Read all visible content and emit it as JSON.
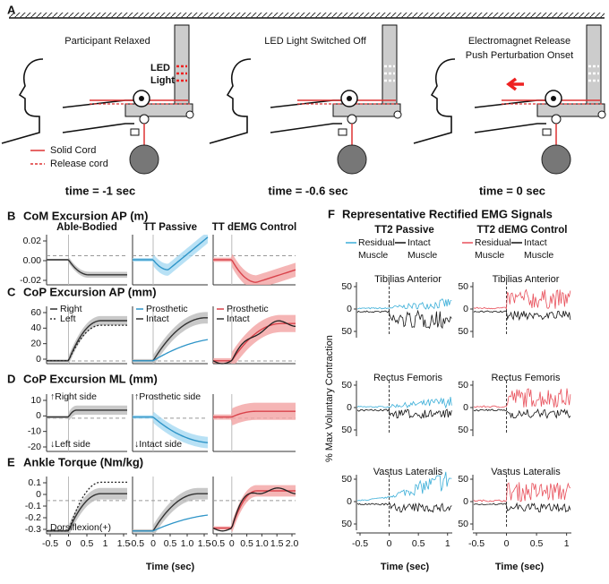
{
  "panel_a": {
    "label": "A",
    "scenes": [
      {
        "caption": [
          "Participant Relaxed"
        ],
        "time": "time = -1 sec"
      },
      {
        "caption": [
          "LED Light Switched Off"
        ],
        "time": "time = -0.6 sec"
      },
      {
        "caption": [
          "Electromagnet Release",
          "Push Perturbation Onset"
        ],
        "time": "time = 0 sec"
      }
    ],
    "led": [
      "LED",
      "Light"
    ],
    "legend": [
      "Solid Cord",
      "Release cord"
    ]
  },
  "panels": [
    {
      "label": "B",
      "title": "CoM Excursion AP (m)",
      "columns": [
        "Able-Bodied",
        "TT Passive",
        "TT dEMG Control"
      ],
      "yticks": [
        "0.02",
        "0.00",
        "-0.02"
      ]
    },
    {
      "label": "C",
      "title": "CoP Excursion AP (mm)",
      "legends": [
        [
          "Right",
          "Left"
        ],
        [
          "Prosthetic",
          "Intact"
        ],
        [
          "Prosthetic",
          "Intact"
        ]
      ],
      "yticks": [
        "60",
        "40",
        "20",
        "0"
      ]
    },
    {
      "label": "D",
      "title": "CoP Excursion ML (mm)",
      "annotations": [
        "↑Right side",
        "↓Left side",
        "↑Prosthetic side",
        "↓Intact side"
      ],
      "yticks": [
        "10",
        "0",
        "-10",
        "-20"
      ]
    },
    {
      "label": "E",
      "title": "Ankle Torque (Nm/kg)",
      "annotations": [
        "Dorsiflexion(+)"
      ],
      "yticks": [
        "0.1",
        "0",
        "-0.1",
        "-0.2",
        "-0.3"
      ]
    }
  ],
  "xticks": [
    [
      "-0.5",
      "0",
      "0.5",
      "1",
      "1.5"
    ],
    [
      "-0.5",
      "0",
      "0.5",
      "1.0",
      "1.5"
    ],
    [
      "-0.5",
      "0",
      "0.5",
      "1.0",
      "1.5",
      "2.0"
    ]
  ],
  "xlabel": "Time (sec)",
  "panel_f": {
    "label": "F",
    "title": "Representative Rectified EMG Signals",
    "columns": [
      "TT2 Passive",
      "TT2 dEMG Control"
    ],
    "legend": [
      [
        "Residual",
        "Muscle"
      ],
      [
        "Intact",
        "Muscle"
      ]
    ],
    "muscles": [
      "Tibilias Anterior",
      "Rectus Femoris",
      "Vastus Lateralis"
    ],
    "yticks": [
      "50",
      "0",
      "50"
    ],
    "xticks": [
      "-0.5",
      "0",
      "0.5",
      "1"
    ],
    "ylabel": "% Max Voluntary Contraction",
    "xlabel": "Time (sec)"
  }
}
